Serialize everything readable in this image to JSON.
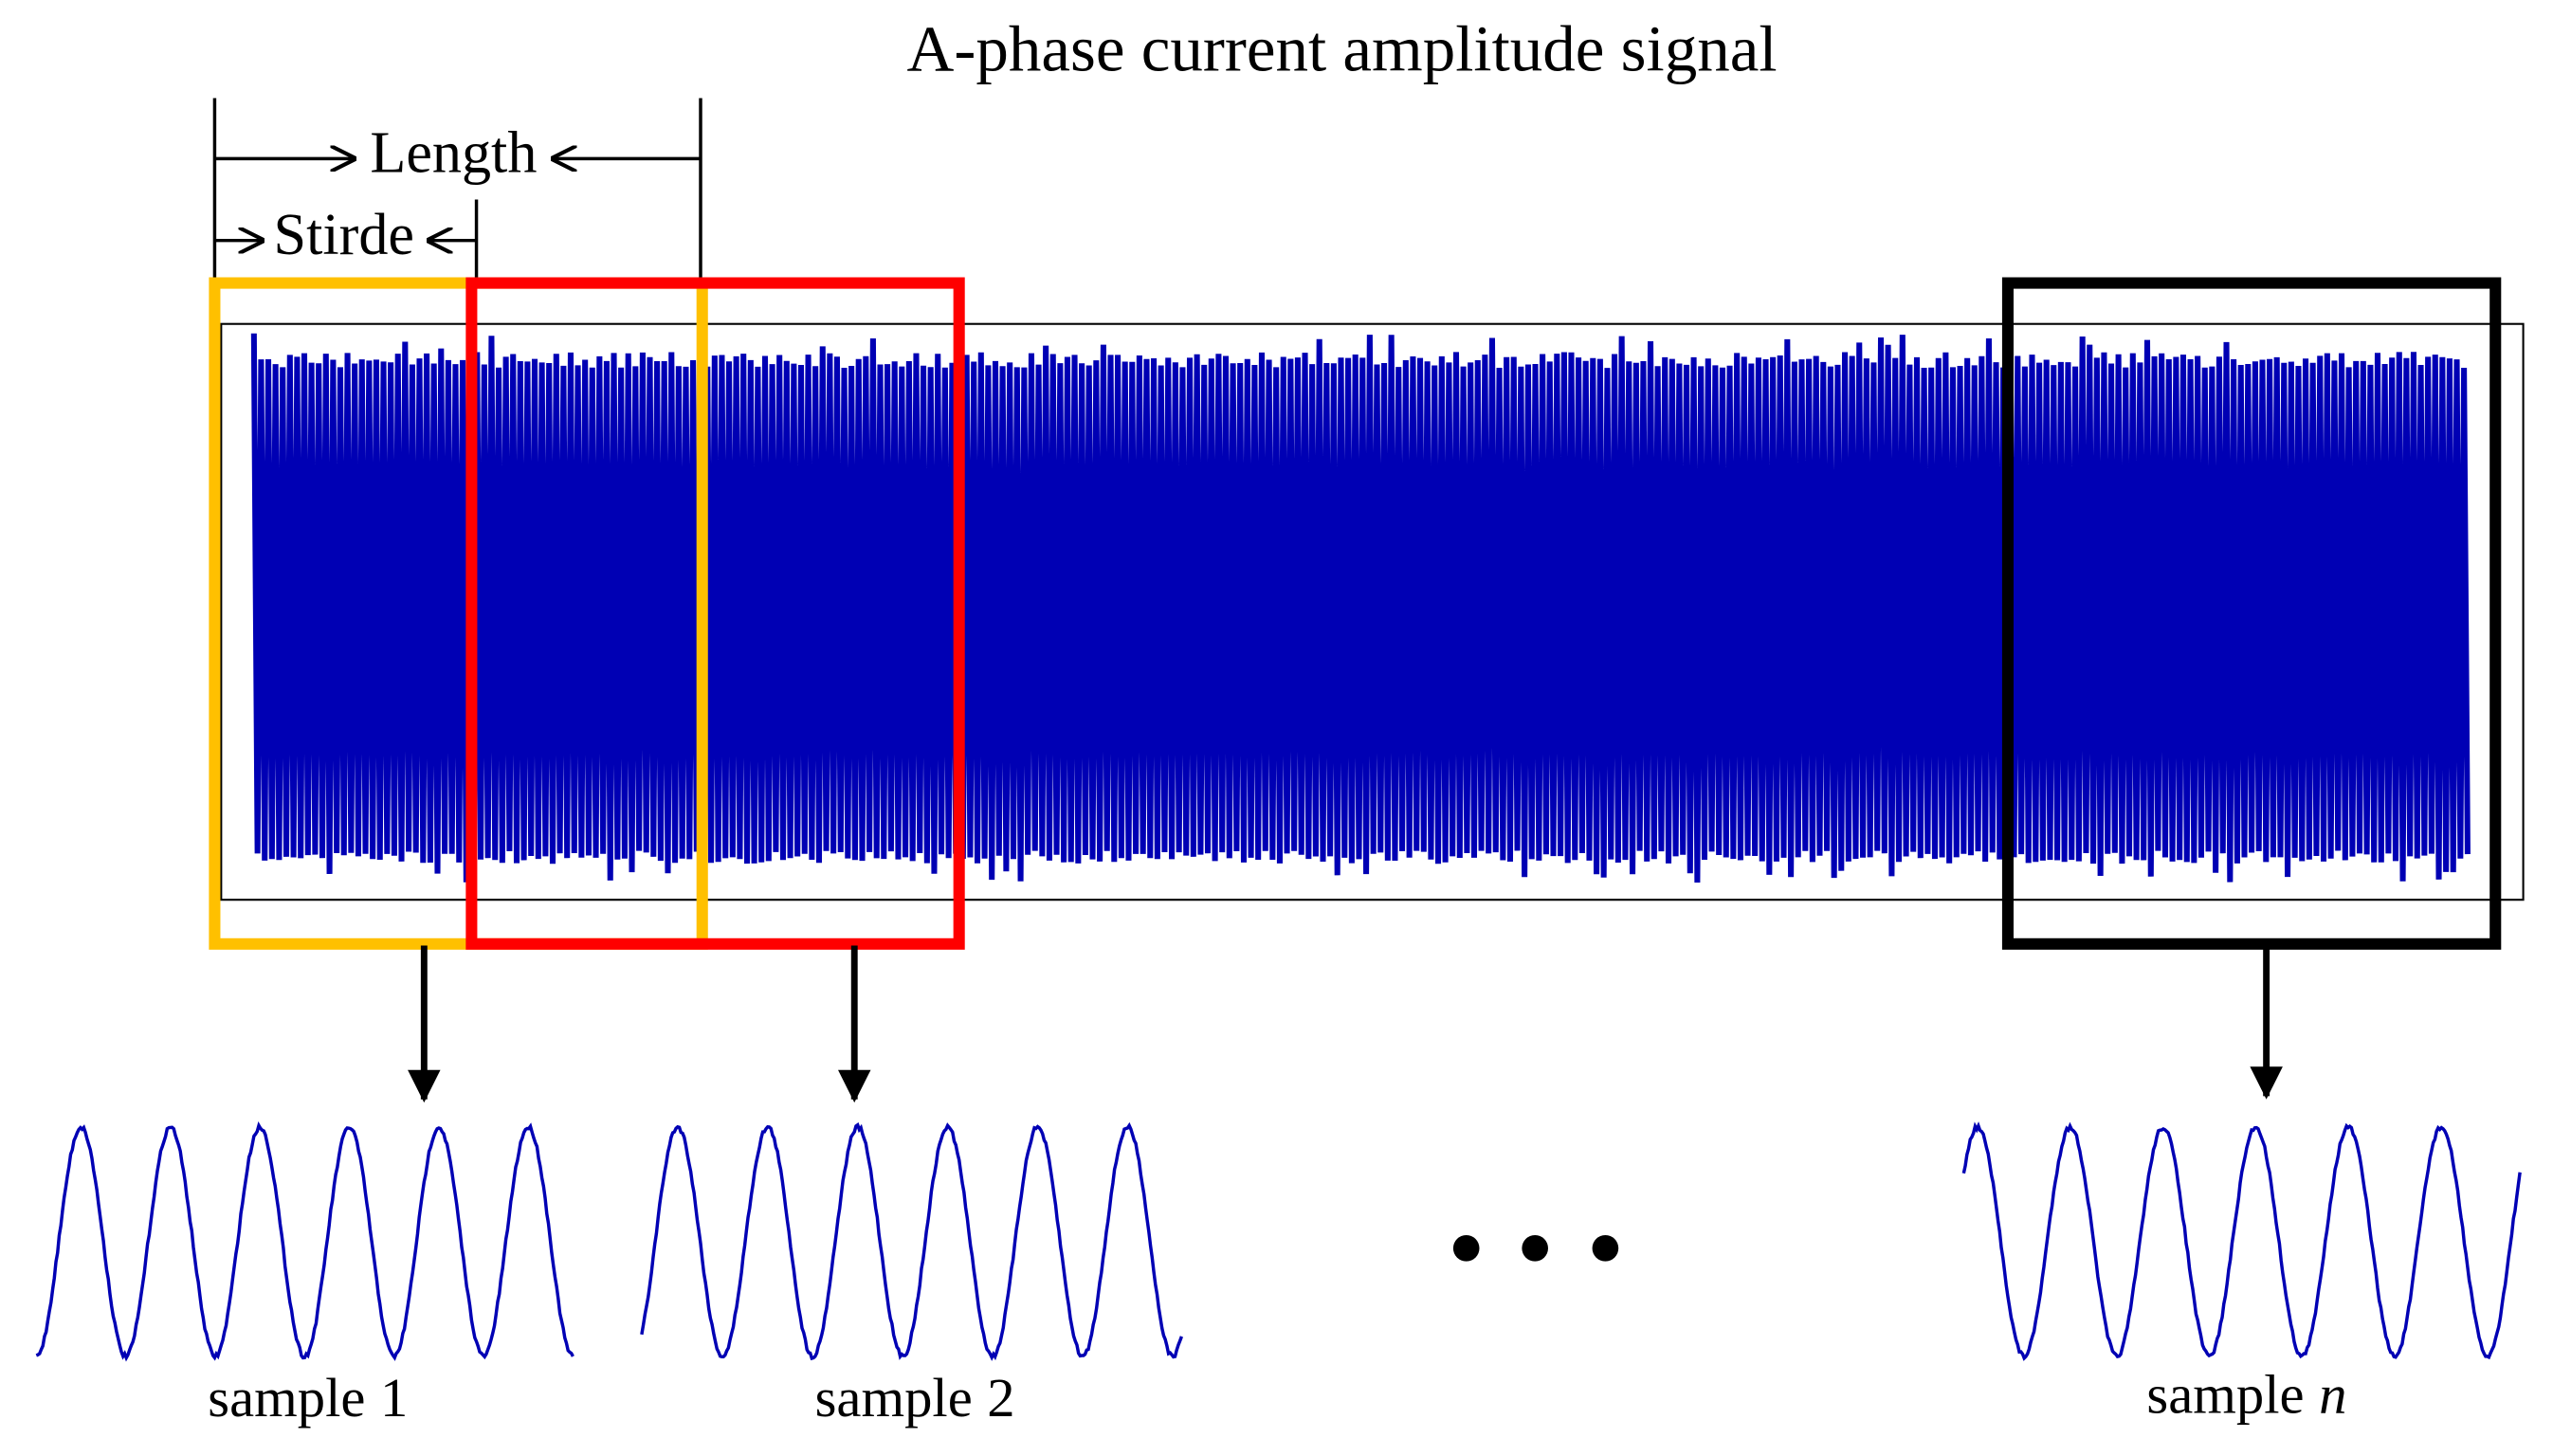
{
  "title": "A-phase current amplitude signal",
  "annotations": {
    "length": "Length",
    "stride": "Stirde"
  },
  "samples": [
    {
      "word": "sample",
      "index": "1",
      "italic": false
    },
    {
      "word": "sample",
      "index": "2",
      "italic": false
    },
    {
      "word": "sample",
      "index": "n",
      "italic": true
    }
  ]
}
